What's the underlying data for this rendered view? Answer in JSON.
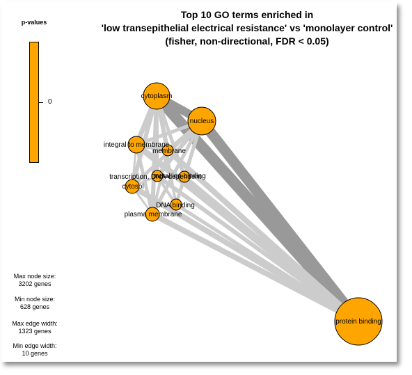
{
  "title": {
    "line1": "Top 10 GO terms enriched in",
    "line2": "'low transepithelial electrical resistance' vs 'monolayer control'",
    "line3": "(fisher, non-directional, FDR < 0.05)"
  },
  "legend": {
    "title": "p-values",
    "tick_label": "0",
    "color": "#ffa500"
  },
  "stats": {
    "max_node_label": "Max node size:",
    "max_node_value": "3202 genes",
    "min_node_label": "Min node size:",
    "min_node_value": "628 genes",
    "max_edge_label": "Max edge width:",
    "max_edge_value": "1323 genes",
    "min_edge_label": "Min edge width:",
    "min_edge_value": "10 genes"
  },
  "colors": {
    "node_fill": "#ffa500",
    "node_stroke": "#000000",
    "edge_strong": "#999999",
    "edge_light": "#cccccc"
  },
  "network": {
    "nodes": [
      {
        "id": "cytoplasm",
        "label": "cytoplasm"
      },
      {
        "id": "nucleus",
        "label": "nucleus"
      },
      {
        "id": "integral",
        "label": "integral to membrane"
      },
      {
        "id": "membrane",
        "label": "membrane"
      },
      {
        "id": "transcription",
        "label": "transcription, DNA-dependent"
      },
      {
        "id": "metal",
        "label": "metal ion binding"
      },
      {
        "id": "cytosol",
        "label": "cytosol"
      },
      {
        "id": "dna",
        "label": "DNA binding"
      },
      {
        "id": "plasma",
        "label": "plasma membrane"
      },
      {
        "id": "protein",
        "label": "protein binding"
      }
    ]
  }
}
